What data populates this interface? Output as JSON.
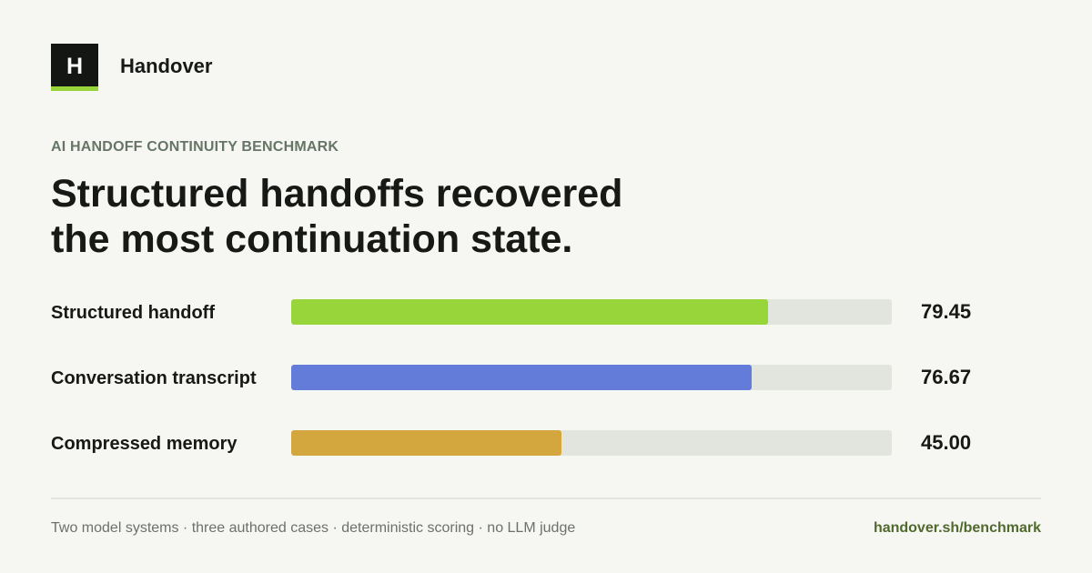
{
  "brand": {
    "logo_letter": "H",
    "name": "Handover",
    "accent_color": "#97d53a"
  },
  "eyebrow": "AI HANDOFF CONTINUITY BENCHMARK",
  "headline": {
    "line1": "Structured handoffs recovered",
    "line2": "the most continuation state."
  },
  "chart_data": {
    "type": "bar",
    "orientation": "horizontal",
    "categories": [
      "Structured handoff",
      "Conversation transcript",
      "Compressed memory"
    ],
    "values": [
      79.45,
      76.67,
      45.0
    ],
    "value_labels": [
      "79.45",
      "76.67",
      "45.00"
    ],
    "colors": [
      "#97d53a",
      "#637bd9",
      "#d4a73e"
    ],
    "xlim": [
      0,
      100
    ],
    "title": "",
    "xlabel": "",
    "ylabel": "",
    "grid": false,
    "legend": "none"
  },
  "footer": {
    "note": "Two model systems · three authored cases · deterministic scoring · no LLM judge",
    "link": "handover.sh/benchmark"
  }
}
